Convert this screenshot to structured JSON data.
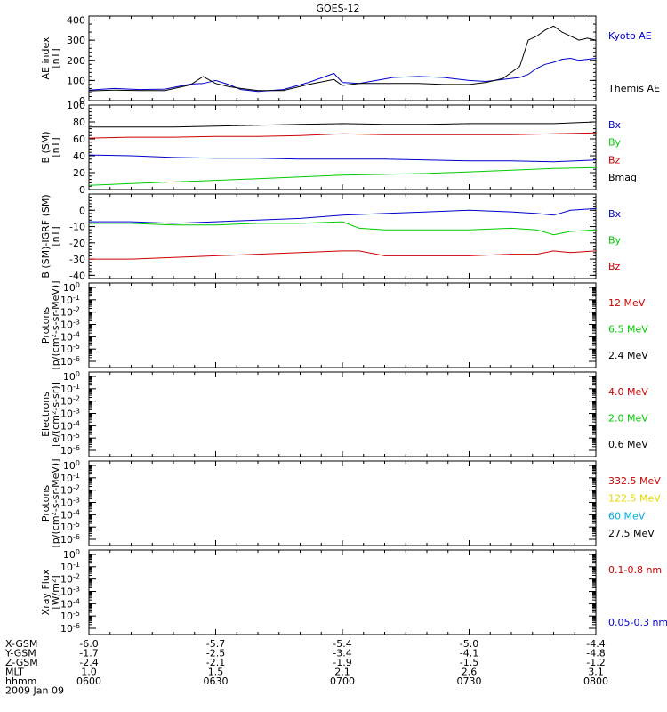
{
  "title": "GOES-12",
  "x_axis": {
    "start_minutes": 360,
    "end_minutes": 480,
    "tick_values": [
      360,
      390,
      420,
      450,
      480
    ],
    "tick_labels": [
      "0600",
      "0630",
      "0700",
      "0730",
      "0800"
    ],
    "date": "2009 Jan 09"
  },
  "ephemeris": {
    "rows": [
      {
        "label": "X-GSM",
        "values": [
          "-6.0",
          "-5.7",
          "-5.4",
          "-5.0",
          "-4.4"
        ]
      },
      {
        "label": "Y-GSM",
        "values": [
          "-1.7",
          "-2.5",
          "-3.4",
          "-4.1",
          "-4.8"
        ]
      },
      {
        "label": "Z-GSM",
        "values": [
          "-2.4",
          "-2.1",
          "-1.9",
          "-1.5",
          "-1.2"
        ]
      },
      {
        "label": "MLT",
        "values": [
          "1.0",
          "1.5",
          "2.1",
          "2.6",
          "3.1"
        ]
      },
      {
        "label": "hhmm",
        "values": [
          "0600",
          "0630",
          "0700",
          "0730",
          "0800"
        ]
      }
    ]
  },
  "chart_data": [
    {
      "type": "line",
      "ylabel": [
        "AE index",
        "[nT]"
      ],
      "ylim": [
        0,
        420
      ],
      "yscale": "linear",
      "yticks": [
        0,
        100,
        200,
        300,
        400
      ],
      "series": [
        {
          "name": "Kyoto AE",
          "color": "#0000cc",
          "x": [
            360,
            366,
            372,
            378,
            384,
            387,
            390,
            393,
            396,
            400,
            406,
            412,
            418,
            420,
            424,
            428,
            432,
            438,
            444,
            450,
            454,
            458,
            462,
            464,
            466,
            468,
            470,
            472,
            474,
            476,
            478,
            480
          ],
          "y": [
            52,
            60,
            55,
            57,
            82,
            85,
            100,
            80,
            55,
            45,
            55,
            90,
            135,
            90,
            85,
            100,
            115,
            120,
            115,
            100,
            95,
            105,
            115,
            130,
            160,
            180,
            190,
            205,
            210,
            200,
            205,
            210
          ]
        },
        {
          "name": "Themis AE",
          "color": "#000000",
          "x": [
            360,
            366,
            372,
            378,
            384,
            387,
            390,
            393,
            396,
            400,
            406,
            412,
            418,
            420,
            424,
            428,
            432,
            438,
            444,
            450,
            454,
            458,
            462,
            464,
            466,
            468,
            470,
            472,
            474,
            476,
            478,
            480
          ],
          "y": [
            48,
            52,
            50,
            50,
            78,
            120,
            85,
            70,
            60,
            50,
            50,
            80,
            105,
            75,
            85,
            85,
            85,
            85,
            80,
            80,
            90,
            110,
            170,
            300,
            320,
            350,
            370,
            340,
            320,
            300,
            310,
            300
          ]
        }
      ],
      "legend": [
        "Kyoto AE",
        "Themis AE"
      ]
    },
    {
      "type": "line",
      "ylabel": [
        "B (SM)",
        "[nT]"
      ],
      "ylim": [
        0,
        100
      ],
      "yscale": "linear",
      "yticks": [
        0,
        20,
        40,
        60,
        80,
        100
      ],
      "series": [
        {
          "name": "Bmag",
          "color": "#000000",
          "x": [
            360,
            370,
            380,
            390,
            400,
            410,
            420,
            430,
            440,
            450,
            460,
            470,
            480
          ],
          "y": [
            74,
            74,
            74,
            75,
            76,
            77,
            78,
            77,
            77,
            78,
            78,
            78,
            80
          ]
        },
        {
          "name": "Bx",
          "color": "#0000cc",
          "x": [
            360,
            370,
            380,
            390,
            400,
            410,
            420,
            430,
            440,
            450,
            460,
            470,
            480
          ],
          "y": [
            41,
            40,
            38,
            37,
            37,
            36,
            36,
            36,
            35,
            34,
            34,
            33,
            35
          ]
        },
        {
          "name": "By",
          "color": "#00cc00",
          "x": [
            360,
            370,
            380,
            390,
            400,
            410,
            420,
            430,
            440,
            450,
            460,
            470,
            480
          ],
          "y": [
            5,
            7,
            9,
            11,
            13,
            15,
            17,
            18,
            19,
            21,
            23,
            25,
            26
          ]
        },
        {
          "name": "Bz",
          "color": "#cc0000",
          "x": [
            360,
            370,
            380,
            390,
            400,
            410,
            420,
            430,
            440,
            450,
            460,
            470,
            480
          ],
          "y": [
            61,
            62,
            62,
            63,
            63,
            64,
            66,
            65,
            65,
            65,
            65,
            66,
            67
          ]
        }
      ],
      "legend": [
        "Bx",
        "By",
        "Bz",
        "Bmag"
      ]
    },
    {
      "type": "line",
      "ylabel": [
        "B (SM)-IGRF (SM)",
        "[nT]"
      ],
      "ylim": [
        -42,
        10
      ],
      "yscale": "linear",
      "yticks": [
        -40,
        -30,
        -20,
        -10,
        0
      ],
      "series": [
        {
          "name": "Bx",
          "color": "#0000cc",
          "x": [
            360,
            370,
            380,
            390,
            400,
            410,
            420,
            430,
            440,
            450,
            460,
            466,
            470,
            474,
            480
          ],
          "y": [
            -7,
            -7,
            -8,
            -7,
            -6,
            -5,
            -3,
            -2,
            -1,
            0,
            -1,
            -2,
            -3,
            0,
            1
          ]
        },
        {
          "name": "By",
          "color": "#00cc00",
          "x": [
            360,
            370,
            380,
            390,
            400,
            410,
            420,
            424,
            430,
            440,
            450,
            460,
            466,
            470,
            474,
            480
          ],
          "y": [
            -8,
            -8,
            -9,
            -9,
            -8,
            -8,
            -7,
            -11,
            -12,
            -12,
            -12,
            -11,
            -12,
            -15,
            -13,
            -12
          ]
        },
        {
          "name": "Bz",
          "color": "#cc0000",
          "x": [
            360,
            370,
            380,
            390,
            400,
            410,
            420,
            424,
            430,
            440,
            450,
            460,
            466,
            470,
            474,
            480
          ],
          "y": [
            -30,
            -30,
            -29,
            -28,
            -27,
            -26,
            -25,
            -25,
            -28,
            -28,
            -28,
            -27,
            -27,
            -25,
            -26,
            -25
          ]
        }
      ],
      "legend": [
        "Bx",
        "By",
        "Bz"
      ]
    },
    {
      "type": "line",
      "ylabel": [
        "Protons",
        "[p/(cm²-s-sr-MeV)]"
      ],
      "yscale": "log",
      "ylim_exp": [
        -6,
        0
      ],
      "series": [],
      "legend": [
        {
          "name": "12 MeV",
          "color": "#cc0000"
        },
        {
          "name": "6.5 MeV",
          "color": "#00cc00"
        },
        {
          "name": "2.4 MeV",
          "color": "#000000"
        }
      ]
    },
    {
      "type": "line",
      "ylabel": [
        "Electrons",
        "[e/(cm²-s-sr)]"
      ],
      "yscale": "log",
      "ylim_exp": [
        -6,
        0
      ],
      "series": [],
      "legend": [
        {
          "name": "4.0 MeV",
          "color": "#cc0000"
        },
        {
          "name": "2.0 MeV",
          "color": "#00cc00"
        },
        {
          "name": "0.6 MeV",
          "color": "#000000"
        }
      ]
    },
    {
      "type": "line",
      "ylabel": [
        "Protons",
        "[p/(cm²-s-sr-MeV)]"
      ],
      "yscale": "log",
      "ylim_exp": [
        -6,
        0
      ],
      "series": [],
      "legend": [
        {
          "name": "332.5 MeV",
          "color": "#cc0000"
        },
        {
          "name": "122.5 MeV",
          "color": "#e6d800"
        },
        {
          "name": "60 MeV",
          "color": "#00aadd"
        },
        {
          "name": "27.5 MeV",
          "color": "#000000"
        }
      ]
    },
    {
      "type": "line",
      "ylabel": [
        "Xray Flux",
        "[W/m²]"
      ],
      "yscale": "log",
      "ylim_exp": [
        -6,
        0
      ],
      "series": [],
      "legend": [
        {
          "name": "0.1-0.8 nm",
          "color": "#cc0000"
        },
        {
          "name": "0.05-0.3 nm",
          "color": "#0000cc"
        }
      ]
    }
  ]
}
